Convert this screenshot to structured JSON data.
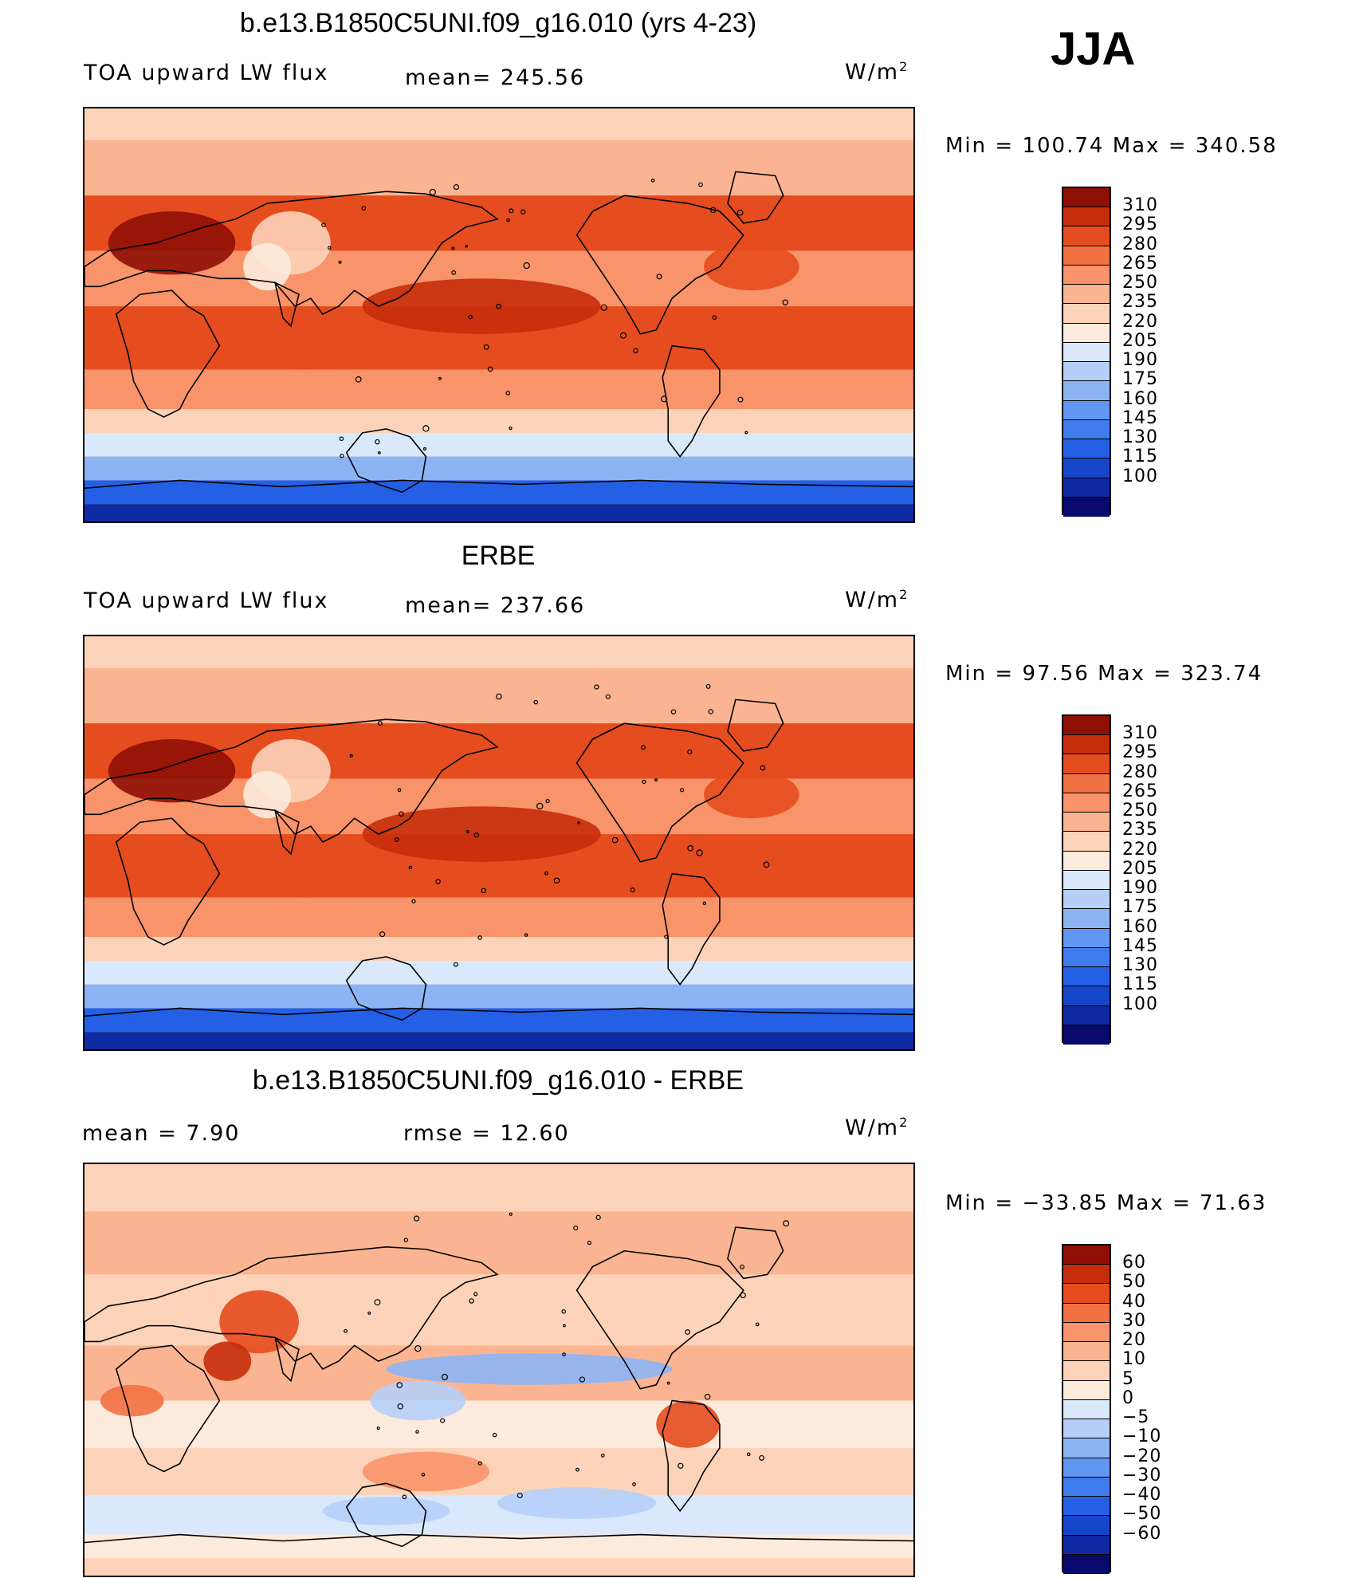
{
  "season": "JJA",
  "units_label": "W/m",
  "units_sup": "2",
  "colors": {
    "flux_levels": [
      "#0a0a6e",
      "#0f2aa3",
      "#1646c8",
      "#2460e6",
      "#3f7cee",
      "#6197f2",
      "#8cb4f5",
      "#b5cff8",
      "#d9e8fb",
      "#fcebdc",
      "#fcd3b9",
      "#fbb491",
      "#f8936a",
      "#f27143",
      "#e54d1f",
      "#c62d0b",
      "#8f0f04"
    ],
    "diff_levels": [
      "#0a0a6e",
      "#0f2aa3",
      "#1646c8",
      "#2460e6",
      "#3f7cee",
      "#6197f2",
      "#8cb4f5",
      "#b5cff8",
      "#d9e8fb",
      "#fcebdc",
      "#fcd3b9",
      "#fbb491",
      "#f8936a",
      "#f27143",
      "#e54d1f",
      "#c62d0b",
      "#8f0f04"
    ]
  },
  "panels": [
    {
      "title": "b.e13.B1850C5UNI.f09_g16.010 (yrs 4-23)",
      "left_label": "TOA upward LW flux",
      "mean_label": "mean= 245.56",
      "minmax_label": "Min  =  100.74  Max  =  340.58"
    },
    {
      "title": "ERBE",
      "left_label": "TOA upward LW flux",
      "mean_label": "mean= 237.66",
      "minmax_label": "Min  =    97.56  Max  =  323.74"
    },
    {
      "title": "b.e13.B1850C5UNI.f09_g16.010 - ERBE",
      "left_label": "mean  =      7.90",
      "mean_label": "rmse  =     12.60",
      "minmax_label": "Min  = −33.85  Max  =    71.63"
    }
  ],
  "chart_data": [
    {
      "type": "heatmap",
      "title": "b.e13.B1850C5UNI.f09_g16.010 (yrs 4-23)",
      "variable": "TOA upward LW flux",
      "units": "W/m2",
      "mean": 245.56,
      "min": 100.74,
      "max": 340.58,
      "colorbar_levels": [
        "310",
        "295",
        "280",
        "265",
        "250",
        "235",
        "220",
        "205",
        "190",
        "175",
        "160",
        "145",
        "130",
        "115",
        "100"
      ]
    },
    {
      "type": "heatmap",
      "title": "ERBE",
      "variable": "TOA upward LW flux",
      "units": "W/m2",
      "mean": 237.66,
      "min": 97.56,
      "max": 323.74,
      "colorbar_levels": [
        "310",
        "295",
        "280",
        "265",
        "250",
        "235",
        "220",
        "205",
        "190",
        "175",
        "160",
        "145",
        "130",
        "115",
        "100"
      ]
    },
    {
      "type": "heatmap",
      "title": "b.e13.B1850C5UNI.f09_g16.010 - ERBE",
      "units": "W/m2",
      "mean": 7.9,
      "rmse": 12.6,
      "min": -33.85,
      "max": 71.63,
      "colorbar_levels": [
        "60",
        "50",
        "40",
        "30",
        "20",
        "10",
        "5",
        "0",
        "−5",
        "−10",
        "−20",
        "−30",
        "−40",
        "−50",
        "−60"
      ]
    }
  ]
}
